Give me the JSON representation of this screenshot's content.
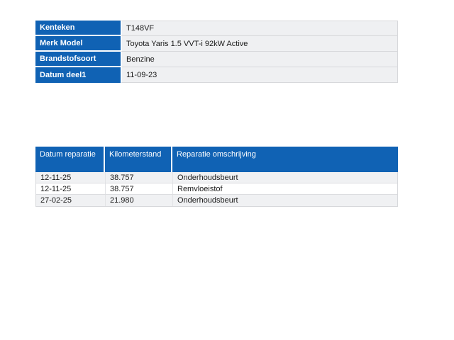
{
  "colors": {
    "header_blue": "#1062b4",
    "info_value_bg": "#eff0f2",
    "row_alt_bg": "#f0f1f3",
    "border_gray": "#d7d8db",
    "text_dark": "#1a1a1a",
    "header_text": "#ffffff"
  },
  "vehicle_info": {
    "rows": [
      {
        "label": "Kenteken",
        "value": "T148VF"
      },
      {
        "label": "Merk Model",
        "value": "Toyota Yaris 1.5 VVT-i 92kW Active"
      },
      {
        "label": "Brandstofsoort",
        "value": "Benzine"
      },
      {
        "label": "Datum deel1",
        "value": "11-09-23"
      }
    ]
  },
  "repair_history": {
    "columns": [
      "Datum reparatie",
      "Kilometerstand",
      "Reparatie omschrijving"
    ],
    "rows": [
      [
        "12-11-25",
        "38.757",
        "Onderhoudsbeurt"
      ],
      [
        "12-11-25",
        "38.757",
        "Remvloeistof"
      ],
      [
        "27-02-25",
        "21.980",
        "Onderhoudsbeurt"
      ]
    ]
  }
}
